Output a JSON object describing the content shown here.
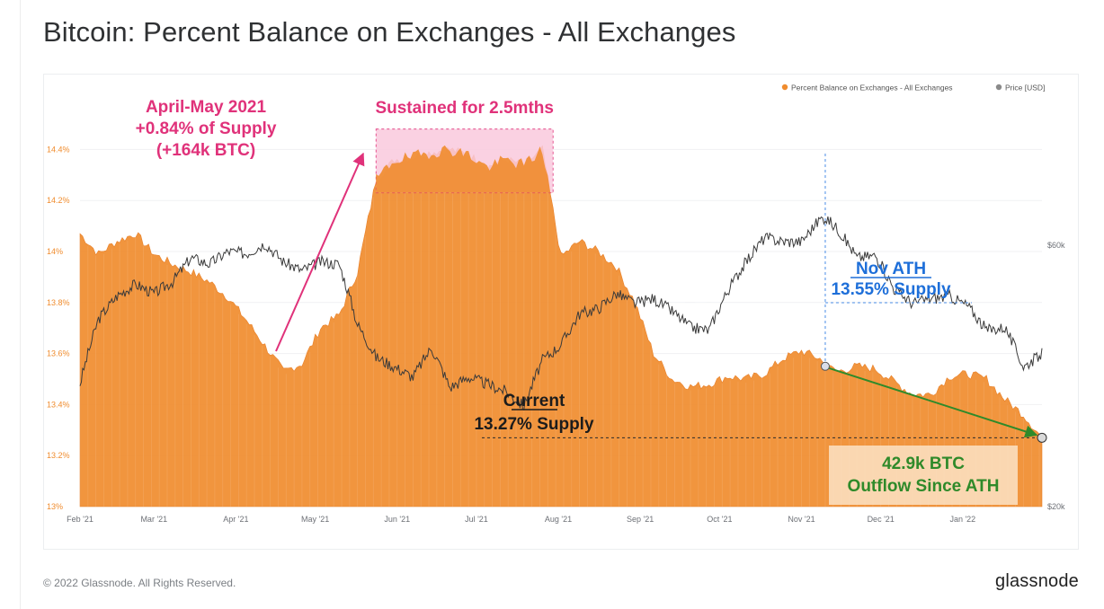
{
  "page": {
    "title": "Bitcoin: Percent Balance on Exchanges - All Exchanges",
    "copyright": "© 2022 Glassnode. All Rights Reserved.",
    "logo": "glassnode",
    "watermark": "glassnode"
  },
  "chart_data": {
    "type": "area",
    "title": "Bitcoin: Percent Balance on Exchanges - All Exchanges",
    "legend_position": "top-right",
    "legend": [
      {
        "label": "Percent Balance on Exchanges - All Exchanges",
        "color": "#f08c2e"
      },
      {
        "label": "Price [USD]",
        "color": "#8a8a8a"
      }
    ],
    "x_axis": {
      "range": [
        "2021-02-01",
        "2022-01-31"
      ],
      "ticks": [
        "Feb '21",
        "Mar '21",
        "Apr '21",
        "May '21",
        "Jun '21",
        "Jul '21",
        "Aug '21",
        "Sep '21",
        "Oct '21",
        "Nov '21",
        "Dec '21",
        "Jan '22"
      ]
    },
    "y_axis_left": {
      "range": [
        13.0,
        14.5
      ],
      "ticks": [
        "13%",
        "13.2%",
        "13.4%",
        "13.6%",
        "13.8%",
        "14%",
        "14.2%",
        "14.4%"
      ]
    },
    "y_axis_right": {
      "scale": "log",
      "range": [
        20000,
        100000
      ],
      "ticks": [
        "$20k",
        "$60k"
      ],
      "tick_values": [
        20000,
        60000
      ]
    },
    "grid": true,
    "series": [
      {
        "name": "Percent Balance on Exchanges - All Exchanges",
        "unit": "%",
        "color": "#f08c2e",
        "points": [
          [
            "2021-02-01",
            14.07
          ],
          [
            "2021-02-08",
            13.99
          ],
          [
            "2021-02-15",
            14.04
          ],
          [
            "2021-02-22",
            14.07
          ],
          [
            "2021-03-01",
            13.99
          ],
          [
            "2021-03-08",
            13.95
          ],
          [
            "2021-03-15",
            13.92
          ],
          [
            "2021-03-22",
            13.88
          ],
          [
            "2021-03-29",
            13.82
          ],
          [
            "2021-04-05",
            13.73
          ],
          [
            "2021-04-12",
            13.63
          ],
          [
            "2021-04-19",
            13.53
          ],
          [
            "2021-04-26",
            13.56
          ],
          [
            "2021-05-03",
            13.7
          ],
          [
            "2021-05-10",
            13.75
          ],
          [
            "2021-05-17",
            13.92
          ],
          [
            "2021-05-24",
            14.28
          ],
          [
            "2021-05-31",
            14.36
          ],
          [
            "2021-06-07",
            14.37
          ],
          [
            "2021-06-14",
            14.39
          ],
          [
            "2021-06-21",
            14.4
          ],
          [
            "2021-06-28",
            14.38
          ],
          [
            "2021-07-05",
            14.33
          ],
          [
            "2021-07-12",
            14.36
          ],
          [
            "2021-07-19",
            14.34
          ],
          [
            "2021-07-26",
            14.4
          ],
          [
            "2021-08-02",
            13.98
          ],
          [
            "2021-08-09",
            14.04
          ],
          [
            "2021-08-16",
            14.0
          ],
          [
            "2021-08-23",
            13.94
          ],
          [
            "2021-08-30",
            13.8
          ],
          [
            "2021-09-06",
            13.6
          ],
          [
            "2021-09-13",
            13.5
          ],
          [
            "2021-09-20",
            13.47
          ],
          [
            "2021-09-27",
            13.48
          ],
          [
            "2021-10-04",
            13.51
          ],
          [
            "2021-10-11",
            13.5
          ],
          [
            "2021-10-18",
            13.52
          ],
          [
            "2021-10-25",
            13.58
          ],
          [
            "2021-11-01",
            13.61
          ],
          [
            "2021-11-08",
            13.58
          ],
          [
            "2021-11-10",
            13.55
          ],
          [
            "2021-11-15",
            13.53
          ],
          [
            "2021-11-22",
            13.55
          ],
          [
            "2021-11-29",
            13.54
          ],
          [
            "2021-12-06",
            13.49
          ],
          [
            "2021-12-13",
            13.44
          ],
          [
            "2021-12-20",
            13.44
          ],
          [
            "2021-12-27",
            13.51
          ],
          [
            "2022-01-03",
            13.52
          ],
          [
            "2022-01-10",
            13.5
          ],
          [
            "2022-01-17",
            13.42
          ],
          [
            "2022-01-24",
            13.36
          ],
          [
            "2022-01-31",
            13.27
          ]
        ]
      },
      {
        "name": "Price [USD]",
        "unit": "USD",
        "color": "#3a3a3a",
        "points": [
          [
            "2021-02-01",
            33500
          ],
          [
            "2021-02-08",
            44000
          ],
          [
            "2021-02-15",
            48500
          ],
          [
            "2021-02-22",
            51000
          ],
          [
            "2021-03-01",
            49000
          ],
          [
            "2021-03-08",
            51500
          ],
          [
            "2021-03-15",
            57000
          ],
          [
            "2021-03-22",
            55500
          ],
          [
            "2021-03-29",
            58500
          ],
          [
            "2021-04-05",
            58000
          ],
          [
            "2021-04-12",
            60500
          ],
          [
            "2021-04-19",
            56000
          ],
          [
            "2021-04-26",
            54000
          ],
          [
            "2021-05-03",
            56000
          ],
          [
            "2021-05-10",
            55500
          ],
          [
            "2021-05-17",
            43000
          ],
          [
            "2021-05-24",
            37500
          ],
          [
            "2021-05-31",
            36000
          ],
          [
            "2021-06-07",
            34500
          ],
          [
            "2021-06-14",
            39000
          ],
          [
            "2021-06-21",
            33000
          ],
          [
            "2021-06-28",
            34500
          ],
          [
            "2021-07-05",
            33500
          ],
          [
            "2021-07-12",
            32500
          ],
          [
            "2021-07-19",
            30500
          ],
          [
            "2021-07-26",
            37000
          ],
          [
            "2021-08-02",
            39500
          ],
          [
            "2021-08-09",
            45000
          ],
          [
            "2021-08-16",
            46000
          ],
          [
            "2021-08-23",
            49000
          ],
          [
            "2021-08-30",
            47000
          ],
          [
            "2021-09-06",
            48000
          ],
          [
            "2021-09-13",
            45500
          ],
          [
            "2021-09-20",
            42500
          ],
          [
            "2021-09-27",
            42000
          ],
          [
            "2021-10-04",
            49500
          ],
          [
            "2021-10-11",
            56000
          ],
          [
            "2021-10-18",
            62000
          ],
          [
            "2021-10-25",
            61000
          ],
          [
            "2021-11-01",
            61000
          ],
          [
            "2021-11-08",
            67000
          ],
          [
            "2021-11-10",
            67500
          ],
          [
            "2021-11-15",
            64000
          ],
          [
            "2021-11-22",
            57000
          ],
          [
            "2021-11-29",
            57500
          ],
          [
            "2021-12-06",
            50000
          ],
          [
            "2021-12-13",
            47000
          ],
          [
            "2021-12-20",
            48000
          ],
          [
            "2021-12-27",
            48500
          ],
          [
            "2022-01-03",
            46500
          ],
          [
            "2022-01-10",
            42000
          ],
          [
            "2022-01-17",
            42500
          ],
          [
            "2022-01-24",
            36000
          ],
          [
            "2022-01-31",
            38000
          ]
        ]
      }
    ],
    "annotations": [
      {
        "id": "aprmay",
        "lines": [
          "April-May 2021",
          "+0.84% of Supply",
          "(+164k BTC)"
        ],
        "color": "#e0327a"
      },
      {
        "id": "sustained",
        "lines": [
          "Sustained for 2.5mths"
        ],
        "color": "#e0327a",
        "span": [
          "2021-05-24",
          "2021-07-30"
        ],
        "range": [
          14.23,
          14.48
        ]
      },
      {
        "id": "novath",
        "lines": [
          "Nov ATH",
          "13.55% Supply"
        ],
        "color": "#1e6fd9",
        "at": [
          "2021-11-10",
          13.55
        ]
      },
      {
        "id": "current",
        "lines": [
          "Current",
          "13.27% Supply"
        ],
        "color": "#1c1c1c",
        "at": [
          "2022-01-31",
          13.27
        ]
      },
      {
        "id": "outflow",
        "lines": [
          "42.9k BTC",
          "Outflow Since ATH"
        ],
        "color": "#2f8a2a"
      }
    ]
  }
}
